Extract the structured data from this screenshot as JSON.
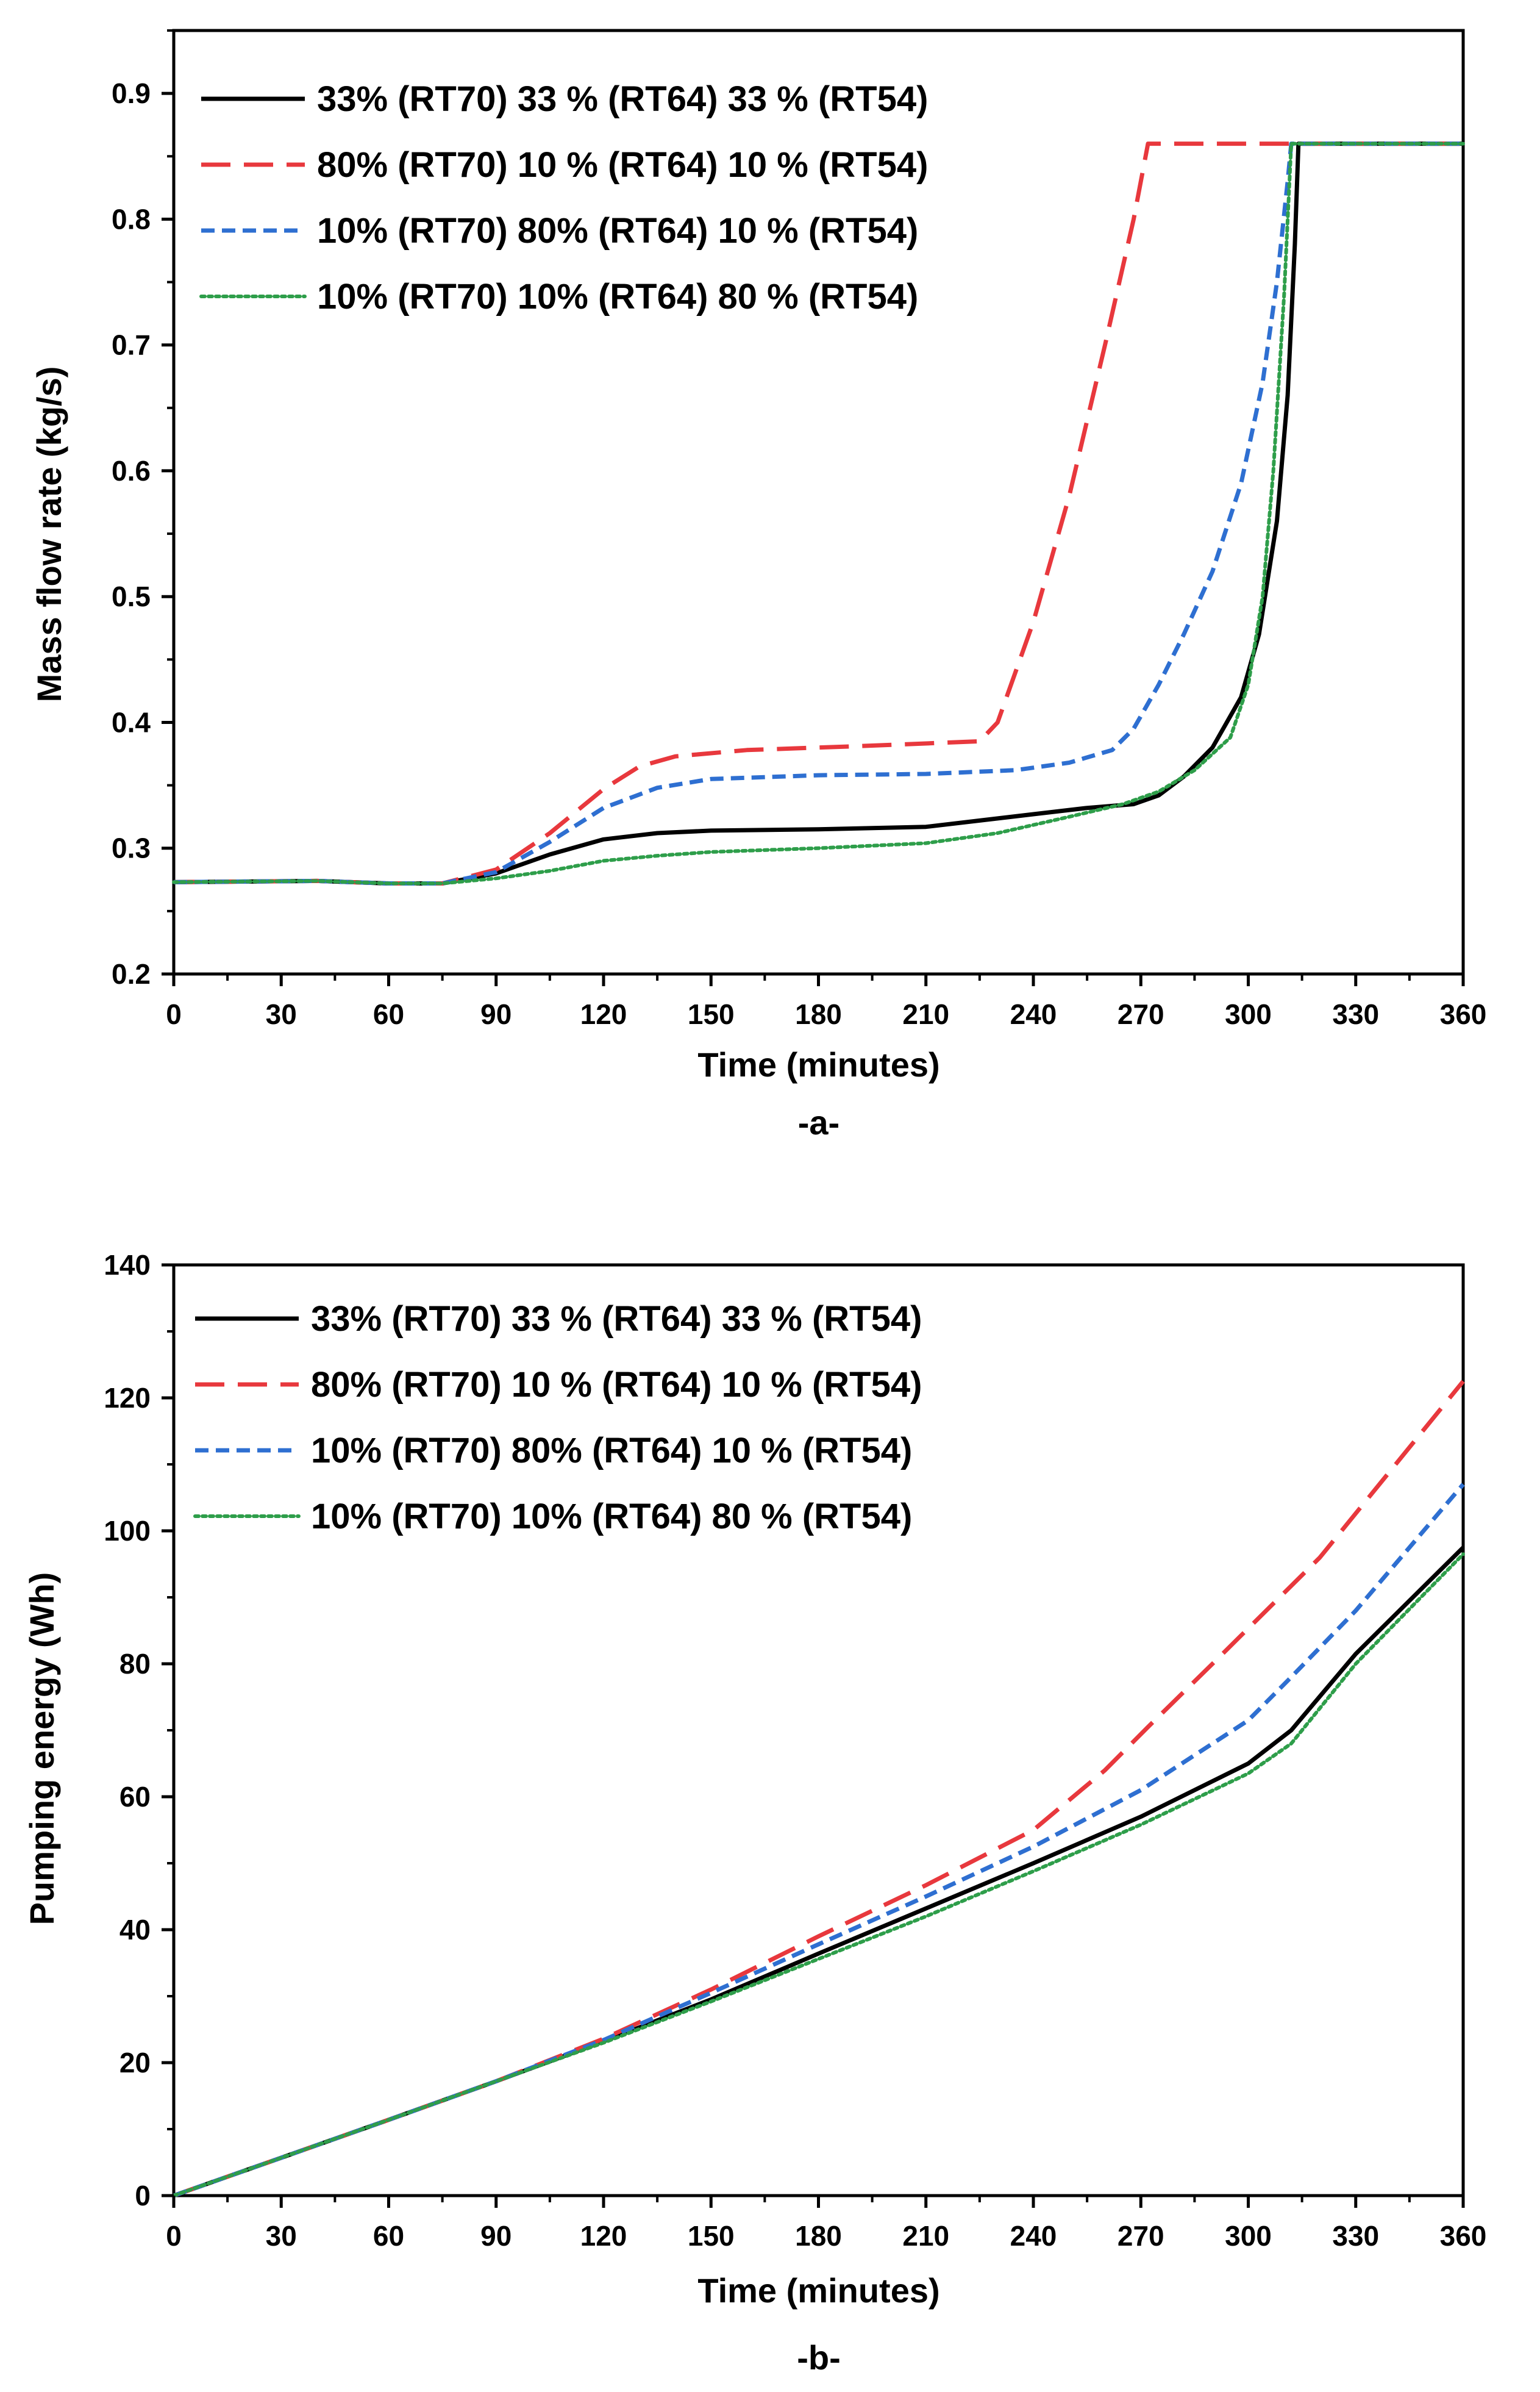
{
  "chart_data": [
    {
      "type": "line",
      "panel_label": "-a-",
      "xlabel": "Time (minutes)",
      "ylabel": "Mass flow rate (kg/s)",
      "xlim": [
        0,
        360
      ],
      "ylim": [
        0.2,
        0.95
      ],
      "xticks": [
        0,
        30,
        60,
        90,
        120,
        150,
        180,
        210,
        240,
        270,
        300,
        330,
        360
      ],
      "xtick_labels": [
        "0",
        "30",
        "60",
        "90",
        "120",
        "150",
        "180",
        "210",
        "240",
        "270",
        "300",
        "330",
        "360"
      ],
      "yticks": [
        0.2,
        0.3,
        0.4,
        0.5,
        0.6,
        0.7,
        0.8,
        0.9
      ],
      "ytick_labels": [
        "0.2",
        "0.3",
        "0.4",
        "0.5",
        "0.6",
        "0.7",
        "0.8",
        "0.9"
      ],
      "legend_position": "top-left",
      "series": [
        {
          "name": "33% (RT70) 33 % (RT64) 33 % (RT54)",
          "color": "#000000",
          "dash": "solid",
          "points": [
            [
              0,
              0.273
            ],
            [
              40,
              0.274
            ],
            [
              60,
              0.272
            ],
            [
              75,
              0.272
            ],
            [
              90,
              0.28
            ],
            [
              105,
              0.295
            ],
            [
              120,
              0.307
            ],
            [
              135,
              0.312
            ],
            [
              150,
              0.314
            ],
            [
              180,
              0.315
            ],
            [
              210,
              0.317
            ],
            [
              225,
              0.322
            ],
            [
              240,
              0.327
            ],
            [
              255,
              0.332
            ],
            [
              268,
              0.335
            ],
            [
              275,
              0.342
            ],
            [
              282,
              0.357
            ],
            [
              290,
              0.38
            ],
            [
              298,
              0.42
            ],
            [
              303,
              0.47
            ],
            [
              308,
              0.56
            ],
            [
              311,
              0.66
            ],
            [
              313,
              0.78
            ],
            [
              314,
              0.86
            ],
            [
              360,
              0.86
            ]
          ]
        },
        {
          "name": "80% (RT70) 10 % (RT64) 10 % (RT54)",
          "color": "#E8383D",
          "dash": "long",
          "points": [
            [
              0,
              0.273
            ],
            [
              40,
              0.274
            ],
            [
              60,
              0.272
            ],
            [
              75,
              0.272
            ],
            [
              90,
              0.283
            ],
            [
              105,
              0.312
            ],
            [
              120,
              0.347
            ],
            [
              130,
              0.365
            ],
            [
              140,
              0.373
            ],
            [
              160,
              0.378
            ],
            [
              190,
              0.381
            ],
            [
              225,
              0.385
            ],
            [
              230,
              0.4
            ],
            [
              240,
              0.48
            ],
            [
              250,
              0.58
            ],
            [
              260,
              0.7
            ],
            [
              268,
              0.8
            ],
            [
              272,
              0.86
            ],
            [
              360,
              0.86
            ]
          ]
        },
        {
          "name": "10% (RT70) 80% (RT64) 10 % (RT54)",
          "color": "#2E6FD1",
          "dash": "short",
          "points": [
            [
              0,
              0.273
            ],
            [
              40,
              0.274
            ],
            [
              60,
              0.272
            ],
            [
              75,
              0.272
            ],
            [
              90,
              0.281
            ],
            [
              105,
              0.305
            ],
            [
              120,
              0.332
            ],
            [
              135,
              0.348
            ],
            [
              150,
              0.355
            ],
            [
              180,
              0.358
            ],
            [
              210,
              0.359
            ],
            [
              235,
              0.362
            ],
            [
              250,
              0.368
            ],
            [
              262,
              0.378
            ],
            [
              268,
              0.395
            ],
            [
              275,
              0.43
            ],
            [
              282,
              0.47
            ],
            [
              290,
              0.52
            ],
            [
              298,
              0.59
            ],
            [
              304,
              0.67
            ],
            [
              308,
              0.75
            ],
            [
              311,
              0.83
            ],
            [
              312,
              0.86
            ],
            [
              360,
              0.86
            ]
          ]
        },
        {
          "name": "10% (RT70) 10% (RT64) 80 % (RT54)",
          "color": "#2E9E4A",
          "dash": "dotted",
          "points": [
            [
              0,
              0.273
            ],
            [
              40,
              0.274
            ],
            [
              60,
              0.272
            ],
            [
              75,
              0.272
            ],
            [
              90,
              0.276
            ],
            [
              105,
              0.282
            ],
            [
              120,
              0.29
            ],
            [
              135,
              0.294
            ],
            [
              150,
              0.297
            ],
            [
              180,
              0.3
            ],
            [
              210,
              0.304
            ],
            [
              230,
              0.312
            ],
            [
              250,
              0.325
            ],
            [
              265,
              0.335
            ],
            [
              275,
              0.345
            ],
            [
              285,
              0.362
            ],
            [
              295,
              0.388
            ],
            [
              300,
              0.43
            ],
            [
              304,
              0.5
            ],
            [
              307,
              0.6
            ],
            [
              310,
              0.74
            ],
            [
              312,
              0.86
            ],
            [
              360,
              0.86
            ]
          ]
        }
      ]
    },
    {
      "type": "line",
      "panel_label": "-b-",
      "xlabel": "Time (minutes)",
      "ylabel": "Pumping energy (Wh)",
      "xlim": [
        0,
        360
      ],
      "ylim": [
        0,
        140
      ],
      "xticks": [
        0,
        30,
        60,
        90,
        120,
        150,
        180,
        210,
        240,
        270,
        300,
        330,
        360
      ],
      "xtick_labels": [
        "0",
        "30",
        "60",
        "90",
        "120",
        "150",
        "180",
        "210",
        "240",
        "270",
        "300",
        "330",
        "360"
      ],
      "yticks": [
        0,
        20,
        40,
        60,
        80,
        100,
        120,
        140
      ],
      "ytick_labels": [
        "0",
        "20",
        "40",
        "60",
        "80",
        "100",
        "120",
        "140"
      ],
      "legend_position": "top-left",
      "series": [
        {
          "name": "33% (RT70) 33 % (RT64) 33 % (RT54)",
          "color": "#000000",
          "dash": "solid",
          "points": [
            [
              0,
              0
            ],
            [
              30,
              5.7
            ],
            [
              60,
              11.4
            ],
            [
              90,
              17.2
            ],
            [
              120,
              23.2
            ],
            [
              150,
              29.5
            ],
            [
              180,
              36.4
            ],
            [
              210,
              43.2
            ],
            [
              240,
              50.0
            ],
            [
              270,
              57.0
            ],
            [
              300,
              65.0
            ],
            [
              312,
              70.0
            ],
            [
              330,
              81.5
            ],
            [
              360,
              97.5
            ]
          ]
        },
        {
          "name": "80% (RT70) 10 % (RT64) 10 % (RT54)",
          "color": "#E8383D",
          "dash": "long",
          "points": [
            [
              0,
              0
            ],
            [
              30,
              5.7
            ],
            [
              60,
              11.4
            ],
            [
              90,
              17.2
            ],
            [
              120,
              23.6
            ],
            [
              150,
              31.0
            ],
            [
              180,
              39.0
            ],
            [
              210,
              46.7
            ],
            [
              240,
              55.0
            ],
            [
              260,
              64.0
            ],
            [
              272,
              70.5
            ],
            [
              290,
              80.0
            ],
            [
              320,
              96.0
            ],
            [
              360,
              122.5
            ]
          ]
        },
        {
          "name": "10% (RT70) 80% (RT64) 10 % (RT54)",
          "color": "#2E6FD1",
          "dash": "short",
          "points": [
            [
              0,
              0
            ],
            [
              30,
              5.7
            ],
            [
              60,
              11.4
            ],
            [
              90,
              17.2
            ],
            [
              120,
              23.4
            ],
            [
              150,
              30.5
            ],
            [
              180,
              37.8
            ],
            [
              210,
              45.0
            ],
            [
              240,
              52.5
            ],
            [
              270,
              61.0
            ],
            [
              300,
              71.5
            ],
            [
              312,
              78.0
            ],
            [
              330,
              88.0
            ],
            [
              360,
              107.0
            ]
          ]
        },
        {
          "name": "10% (RT70) 10% (RT64) 80 % (RT54)",
          "color": "#2E9E4A",
          "dash": "dotted",
          "points": [
            [
              0,
              0
            ],
            [
              30,
              5.7
            ],
            [
              60,
              11.4
            ],
            [
              90,
              17.2
            ],
            [
              120,
              23.0
            ],
            [
              150,
              29.2
            ],
            [
              180,
              35.6
            ],
            [
              210,
              42.0
            ],
            [
              240,
              48.8
            ],
            [
              270,
              55.8
            ],
            [
              300,
              63.5
            ],
            [
              312,
              68.0
            ],
            [
              330,
              80.0
            ],
            [
              360,
              96.5
            ]
          ]
        }
      ]
    }
  ]
}
